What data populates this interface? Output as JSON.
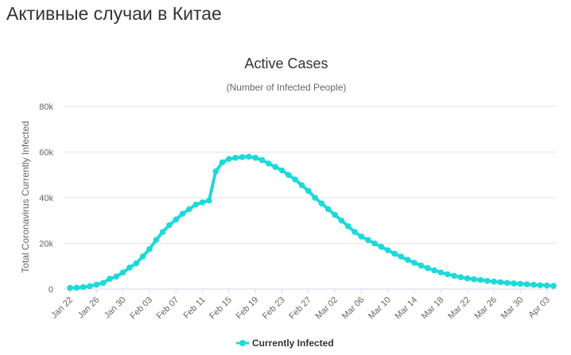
{
  "page": {
    "heading": "Активные случаи в Китае"
  },
  "chart_data": {
    "type": "line",
    "title": "Active Cases",
    "subtitle": "(Number of Infected People)",
    "ylabel": "Total Coronavirus Currently Infected",
    "xlabel": "",
    "ylim": [
      0,
      80000
    ],
    "y_ticks": [
      0,
      20000,
      40000,
      60000,
      80000
    ],
    "y_tick_labels": [
      "0",
      "20k",
      "40k",
      "60k",
      "80k"
    ],
    "x_tick_labels": [
      "Jan 22",
      "Jan 26",
      "Jan 30",
      "Feb 03",
      "Feb 07",
      "Feb 11",
      "Feb 15",
      "Feb 19",
      "Feb 23",
      "Feb 27",
      "Mar 02",
      "Mar 06",
      "Mar 10",
      "Mar 14",
      "Mar 18",
      "Mar 22",
      "Mar 26",
      "Mar 30",
      "Apr 03"
    ],
    "grid": true,
    "legend_position": "bottom-center",
    "colors": {
      "series": "#1ED9D9",
      "grid": "#e6e6e6",
      "axis": "#ccd6eb"
    },
    "series": [
      {
        "name": "Currently Infected",
        "x": [
          "Jan 22",
          "Jan 23",
          "Jan 24",
          "Jan 25",
          "Jan 26",
          "Jan 27",
          "Jan 28",
          "Jan 29",
          "Jan 30",
          "Jan 31",
          "Feb 01",
          "Feb 02",
          "Feb 03",
          "Feb 04",
          "Feb 05",
          "Feb 06",
          "Feb 07",
          "Feb 08",
          "Feb 09",
          "Feb 10",
          "Feb 11",
          "Feb 12",
          "Feb 13",
          "Feb 14",
          "Feb 15",
          "Feb 16",
          "Feb 17",
          "Feb 18",
          "Feb 19",
          "Feb 20",
          "Feb 21",
          "Feb 22",
          "Feb 23",
          "Feb 24",
          "Feb 25",
          "Feb 26",
          "Feb 27",
          "Feb 28",
          "Feb 29",
          "Mar 01",
          "Mar 02",
          "Mar 03",
          "Mar 04",
          "Mar 05",
          "Mar 06",
          "Mar 07",
          "Mar 08",
          "Mar 09",
          "Mar 10",
          "Mar 11",
          "Mar 12",
          "Mar 13",
          "Mar 14",
          "Mar 15",
          "Mar 16",
          "Mar 17",
          "Mar 18",
          "Mar 19",
          "Mar 20",
          "Mar 21",
          "Mar 22",
          "Mar 23",
          "Mar 24",
          "Mar 25",
          "Mar 26",
          "Mar 27",
          "Mar 28",
          "Mar 29",
          "Mar 30",
          "Mar 31",
          "Apr 01",
          "Apr 02",
          "Apr 03",
          "Apr 04"
        ],
        "values": [
          510,
          570,
          870,
          1300,
          1950,
          2700,
          4500,
          5500,
          7300,
          9400,
          11300,
          14300,
          17500,
          21500,
          25000,
          28000,
          30500,
          33000,
          35000,
          37000,
          38000,
          38800,
          51500,
          55500,
          57000,
          57500,
          57800,
          58000,
          57500,
          56500,
          55000,
          53500,
          52000,
          50000,
          48000,
          45500,
          43000,
          40000,
          37500,
          35000,
          32500,
          30000,
          27500,
          25000,
          23000,
          21500,
          20000,
          18500,
          17000,
          15500,
          14200,
          12800,
          11500,
          10300,
          9200,
          8200,
          7300,
          6500,
          5800,
          5200,
          4700,
          4300,
          4000,
          3600,
          3300,
          3000,
          2700,
          2500,
          2300,
          2100,
          1900,
          1700,
          1600,
          1400
        ]
      }
    ]
  }
}
